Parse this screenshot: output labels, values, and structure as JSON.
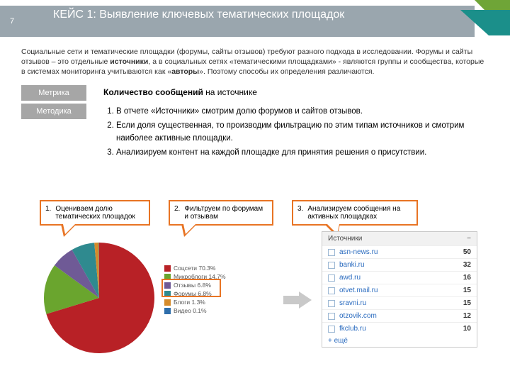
{
  "header": {
    "title": "КЕЙС 1: Выявление ключевых тематических площадок",
    "page_num": "7"
  },
  "intro": {
    "p1a": "Социальные сети и тематические площадки (форумы, сайты отзывов) требуют разного подхода в исследовании. Форумы и сайты отзывов – это отдельные ",
    "p1b": "источники",
    "p1c": ", а в социальных сетях «тематическими площадками» - являются группы и сообщества, которые в системах мониторинга учитываются как «",
    "p1d": "авторы",
    "p1e": "». Поэтому способы их определения различаются."
  },
  "metric": {
    "label": "Метрика",
    "text_b": "Количество сообщений",
    "text_a": " на источнике"
  },
  "method": {
    "label": "Методика",
    "items": [
      "В отчете «Источники» смотрим долю форумов и сайтов отзывов.",
      "Если доля существенная, то производим фильтрацию по этим типам источников и смотрим наиболее активные площадки.",
      "Анализируем контент на каждой площадке для принятия решения о присутствии."
    ]
  },
  "callouts": {
    "c1_n": "1.",
    "c1": "Оцениваем долю тематических площадок",
    "c2_n": "2.",
    "c2": "Фильтруем по форумам и отзывам",
    "c3_n": "3.",
    "c3": "Анализируем сообщения на активных площадках"
  },
  "pie": {
    "type": "pie",
    "size": 160,
    "slices": [
      {
        "label": "Соцсети 70.3%",
        "value": 70.3,
        "color": "#b82126"
      },
      {
        "label": "Микроблоги 14.7%",
        "value": 14.7,
        "color": "#6aa52e"
      },
      {
        "label": "Отзывы 6.8%",
        "value": 6.8,
        "color": "#6f5a96"
      },
      {
        "label": "Форумы 6.8%",
        "value": 6.8,
        "color": "#2f8a8f"
      },
      {
        "label": "Блоги 1.3%",
        "value": 1.3,
        "color": "#d58b2a"
      },
      {
        "label": "Видео 0.1%",
        "value": 0.1,
        "color": "#2e6eab"
      }
    ],
    "highlight_indices": [
      2,
      3
    ],
    "highlight_color": "#e87424",
    "legend_fontsize": 8.5,
    "legend_swatch": 9
  },
  "sources": {
    "header": "Источники",
    "minus": "−",
    "more": "+ ещё",
    "rows": [
      {
        "name": "asn-news.ru",
        "count": 50
      },
      {
        "name": "banki.ru",
        "count": 32
      },
      {
        "name": "awd.ru",
        "count": 16
      },
      {
        "name": "otvet.mail.ru",
        "count": 15
      },
      {
        "name": "sravni.ru",
        "count": 15
      },
      {
        "name": "otzovik.com",
        "count": 12
      },
      {
        "name": "fkclub.ru",
        "count": 10
      }
    ]
  },
  "colors": {
    "header_band": "#9aa6ae",
    "corner_green": "#6fa537",
    "corner_teal": "#1b8f8a",
    "callout_border": "#e87424",
    "tag_bg": "#a6a6a6",
    "link": "#2a6bbf"
  }
}
